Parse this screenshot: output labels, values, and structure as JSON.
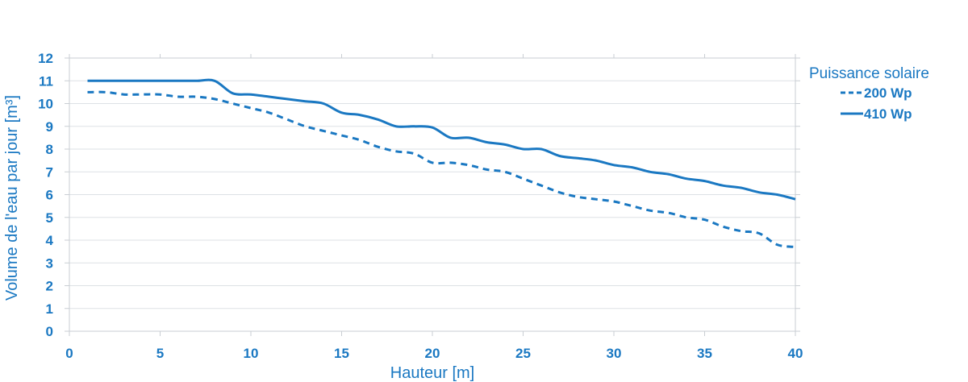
{
  "chart_data": {
    "type": "line",
    "title": "",
    "xlabel": "Hauteur [m]",
    "ylabel": "Volume de l'eau par jour [m³]",
    "xlim": [
      0,
      40
    ],
    "ylim": [
      0,
      12
    ],
    "xticks": [
      0,
      5,
      10,
      15,
      20,
      25,
      30,
      35,
      40
    ],
    "yticks": [
      0,
      1,
      2,
      3,
      4,
      5,
      6,
      7,
      8,
      9,
      10,
      11,
      12
    ],
    "grid": "horizontal",
    "legend_title": "Puissance solaire",
    "legend_position": "right",
    "series": [
      {
        "name": "200 Wp",
        "style": "dashed",
        "color": "#1a78c2",
        "x": [
          1,
          2,
          3,
          4,
          5,
          6,
          7,
          8,
          9,
          10,
          11,
          12,
          13,
          14,
          15,
          16,
          17,
          18,
          19,
          20,
          21,
          22,
          23,
          24,
          25,
          26,
          27,
          28,
          29,
          30,
          31,
          32,
          33,
          34,
          35,
          36,
          37,
          38,
          39,
          40
        ],
        "y": [
          10.5,
          10.5,
          10.4,
          10.4,
          10.4,
          10.3,
          10.3,
          10.2,
          10.0,
          9.8,
          9.6,
          9.3,
          9.0,
          8.8,
          8.6,
          8.4,
          8.1,
          7.9,
          7.8,
          7.4,
          7.4,
          7.3,
          7.1,
          7.0,
          6.7,
          6.4,
          6.1,
          5.9,
          5.8,
          5.7,
          5.5,
          5.3,
          5.2,
          5.0,
          4.9,
          4.6,
          4.4,
          4.3,
          3.8,
          3.7
        ]
      },
      {
        "name": "410 Wp",
        "style": "solid",
        "color": "#1a78c2",
        "x": [
          1,
          2,
          3,
          4,
          5,
          6,
          7,
          8,
          9,
          10,
          11,
          12,
          13,
          14,
          15,
          16,
          17,
          18,
          19,
          20,
          21,
          22,
          23,
          24,
          25,
          26,
          27,
          28,
          29,
          30,
          31,
          32,
          33,
          34,
          35,
          36,
          37,
          38,
          39,
          40
        ],
        "y": [
          11.0,
          11.0,
          11.0,
          11.0,
          11.0,
          11.0,
          11.0,
          11.0,
          10.45,
          10.4,
          10.3,
          10.2,
          10.1,
          10.0,
          9.6,
          9.5,
          9.3,
          9.0,
          9.0,
          8.95,
          8.5,
          8.5,
          8.3,
          8.2,
          8.0,
          8.0,
          7.7,
          7.6,
          7.5,
          7.3,
          7.2,
          7.0,
          6.9,
          6.7,
          6.6,
          6.4,
          6.3,
          6.1,
          6.0,
          5.8
        ]
      }
    ]
  }
}
